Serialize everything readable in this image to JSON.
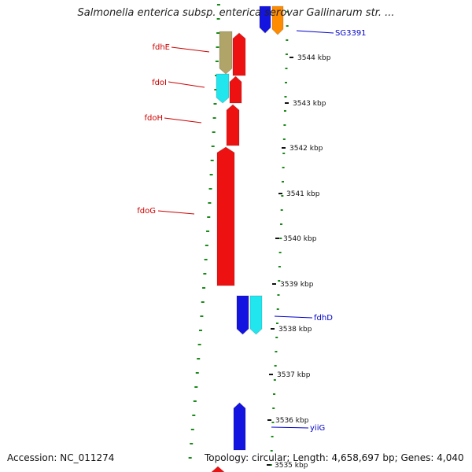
{
  "title": "Salmonella enterica subsp. enterica serovar Gallinarum str. ...",
  "footer": {
    "accession": "Accession: NC_011274",
    "summary": "Topology: circular; Length: 4,658,697 bp; Genes: 4,040"
  },
  "colors": {
    "backbone": "#8a8a8a",
    "forward_gene": "#ee1111",
    "reverse_gene": "#1414e0",
    "cyan_gene": "#22e6ee",
    "olive_gene": "#b0a468",
    "orange_gene": "#ff8c00",
    "left_label": "#cc0000",
    "right_label": "#0000cc",
    "dotted_guide": "#1a8a1a"
  },
  "scale_labels": [
    "3544 kbp",
    "3543 kbp",
    "3542 kbp",
    "3541 kbp",
    "3540 kbp",
    "3539 kbp",
    "3538 kbp",
    "3537 kbp",
    "3536 kbp",
    "3535 kbp"
  ],
  "gene_labels_left": [
    "fdhE",
    "fdoI",
    "fdoH",
    "fdoG"
  ],
  "gene_labels_right": [
    "SG3391",
    "fdhD",
    "yiiG"
  ]
}
